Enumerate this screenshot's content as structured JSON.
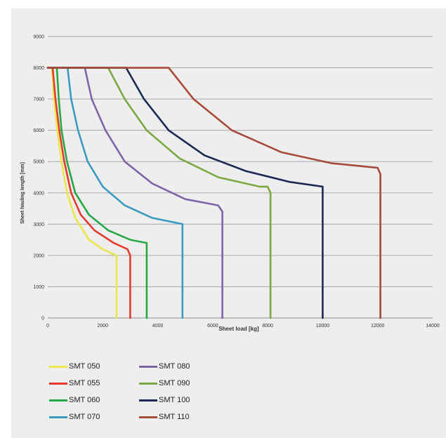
{
  "chart_data": {
    "type": "line",
    "title": "",
    "xlabel": "Sheet load [kg]",
    "ylabel": "Sheet hauling length [mm]",
    "xlim": [
      0,
      14000
    ],
    "ylim": [
      0,
      9000
    ],
    "xticks": [
      0,
      2000,
      4000,
      6000,
      8000,
      10000,
      12000,
      14000
    ],
    "yticks": [
      0,
      1000,
      2000,
      3000,
      4000,
      5000,
      6000,
      7000,
      8000,
      9000
    ],
    "grid": "horizontal",
    "legend_position": "bottom",
    "series": [
      {
        "name": "SMT 050",
        "color": "#e8e84a",
        "points": [
          [
            0,
            8000
          ],
          [
            150,
            8000
          ],
          [
            230,
            7000
          ],
          [
            350,
            6000
          ],
          [
            500,
            5000
          ],
          [
            700,
            4000
          ],
          [
            1000,
            3200
          ],
          [
            1500,
            2500
          ],
          [
            2000,
            2200
          ],
          [
            2500,
            2000
          ],
          [
            2500,
            0
          ]
        ]
      },
      {
        "name": "SMT 055",
        "color": "#e63a2e",
        "points": [
          [
            0,
            8000
          ],
          [
            180,
            8000
          ],
          [
            280,
            7000
          ],
          [
            420,
            6000
          ],
          [
            600,
            5000
          ],
          [
            850,
            4000
          ],
          [
            1200,
            3300
          ],
          [
            1700,
            2800
          ],
          [
            2400,
            2400
          ],
          [
            2900,
            2200
          ],
          [
            3000,
            2000
          ],
          [
            3000,
            0
          ]
        ]
      },
      {
        "name": "SMT 060",
        "color": "#27a846",
        "points": [
          [
            0,
            8000
          ],
          [
            330,
            8000
          ],
          [
            400,
            7000
          ],
          [
            500,
            6000
          ],
          [
            700,
            5000
          ],
          [
            1000,
            4000
          ],
          [
            1500,
            3300
          ],
          [
            2200,
            2800
          ],
          [
            3000,
            2500
          ],
          [
            3600,
            2400
          ],
          [
            3600,
            0
          ]
        ]
      },
      {
        "name": "SMT 070",
        "color": "#3a9bc1",
        "points": [
          [
            0,
            8000
          ],
          [
            720,
            8000
          ],
          [
            850,
            7000
          ],
          [
            1100,
            6000
          ],
          [
            1450,
            5000
          ],
          [
            2000,
            4200
          ],
          [
            2800,
            3600
          ],
          [
            3800,
            3200
          ],
          [
            4900,
            3000
          ],
          [
            4900,
            0
          ]
        ]
      },
      {
        "name": "SMT 080",
        "color": "#7e65a8",
        "points": [
          [
            0,
            8000
          ],
          [
            1350,
            8000
          ],
          [
            1600,
            7000
          ],
          [
            2100,
            6000
          ],
          [
            2800,
            5000
          ],
          [
            3800,
            4300
          ],
          [
            5000,
            3800
          ],
          [
            6200,
            3600
          ],
          [
            6350,
            3400
          ],
          [
            6350,
            0
          ]
        ]
      },
      {
        "name": "SMT 090",
        "color": "#7da743",
        "points": [
          [
            0,
            8000
          ],
          [
            2200,
            8000
          ],
          [
            2800,
            7000
          ],
          [
            3600,
            6000
          ],
          [
            4800,
            5100
          ],
          [
            6200,
            4500
          ],
          [
            7700,
            4200
          ],
          [
            8000,
            4200
          ],
          [
            8100,
            4000
          ],
          [
            8100,
            0
          ]
        ]
      },
      {
        "name": "SMT 100",
        "color": "#1b2a55",
        "points": [
          [
            0,
            8000
          ],
          [
            2850,
            8000
          ],
          [
            3500,
            7000
          ],
          [
            4400,
            6000
          ],
          [
            5700,
            5200
          ],
          [
            7200,
            4700
          ],
          [
            8800,
            4350
          ],
          [
            10000,
            4200
          ],
          [
            10000,
            0
          ]
        ]
      },
      {
        "name": "SMT 110",
        "color": "#a84a3a",
        "points": [
          [
            0,
            8000
          ],
          [
            4400,
            8000
          ],
          [
            5300,
            7000
          ],
          [
            6700,
            6000
          ],
          [
            8500,
            5300
          ],
          [
            10300,
            4950
          ],
          [
            12000,
            4800
          ],
          [
            12100,
            4600
          ],
          [
            12100,
            0
          ]
        ]
      }
    ]
  }
}
